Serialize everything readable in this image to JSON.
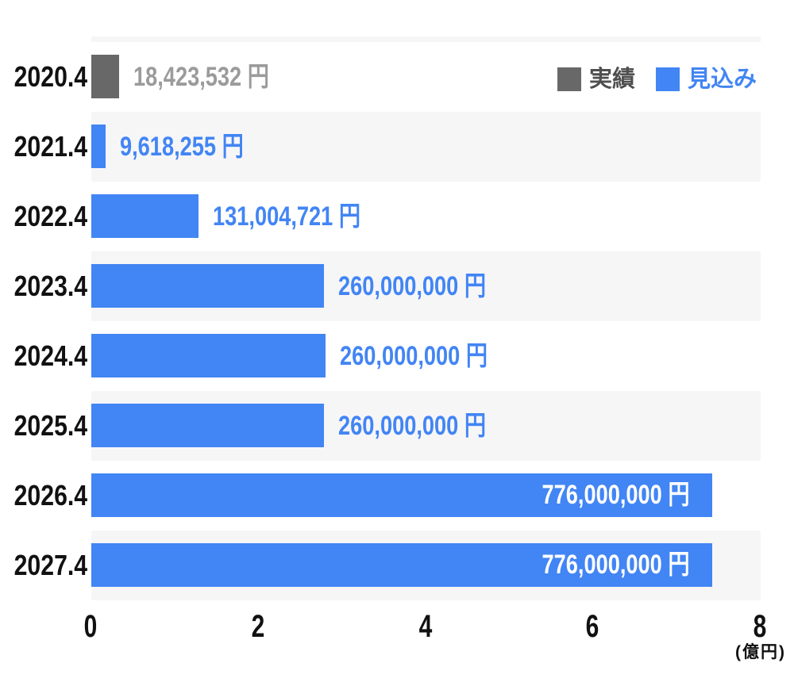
{
  "chart_data": {
    "type": "bar",
    "orientation": "horizontal",
    "grid": false,
    "legend_position": "top-right",
    "x_axis": {
      "tick_labels": [
        "0",
        "2",
        "4",
        "6",
        "8"
      ],
      "range": [
        0,
        8
      ],
      "unit_label": "(億円)"
    },
    "legend": [
      {
        "label": "実績",
        "swatch_color": "#686868",
        "text_color": "#4F4F4F"
      },
      {
        "label": "見込み",
        "swatch_color": "#4285F4",
        "text_color": "#4285F4"
      }
    ],
    "rows": [
      {
        "category": "2020.4",
        "value": 18423532,
        "value_label": "18,423,532 円",
        "series": "実績",
        "bar_color": "#686868",
        "label_color": "#9B9B9B",
        "label_inside": false,
        "bar_fraction": 0.0415,
        "striped": false
      },
      {
        "category": "2021.4",
        "value": 9618255,
        "value_label": "9,618,255 円",
        "series": "見込み",
        "bar_color": "#4285F4",
        "label_color": "#4285F4",
        "label_inside": false,
        "bar_fraction": 0.021,
        "striped": true
      },
      {
        "category": "2022.4",
        "value": 131004721,
        "value_label": "131,004,721 円",
        "series": "見込み",
        "bar_color": "#4285F4",
        "label_color": "#4285F4",
        "label_inside": false,
        "bar_fraction": 0.16,
        "striped": false
      },
      {
        "category": "2023.4",
        "value": 260000000,
        "value_label": "260,000,000 円",
        "series": "見込み",
        "bar_color": "#4285F4",
        "label_color": "#4285F4",
        "label_inside": false,
        "bar_fraction": 0.348,
        "striped": true
      },
      {
        "category": "2024.4",
        "value": 260000000,
        "value_label": "260,000,000 円",
        "series": "見込み",
        "bar_color": "#4285F4",
        "label_color": "#4285F4",
        "label_inside": false,
        "bar_fraction": 0.35,
        "striped": false
      },
      {
        "category": "2025.4",
        "value": 260000000,
        "value_label": "260,000,000 円",
        "series": "見込み",
        "bar_color": "#4285F4",
        "label_color": "#4285F4",
        "label_inside": false,
        "bar_fraction": 0.348,
        "striped": true
      },
      {
        "category": "2026.4",
        "value": 776000000,
        "value_label": "776,000,000 円",
        "series": "見込み",
        "bar_color": "#4285F4",
        "label_color": "#FFFFFF",
        "label_inside": true,
        "bar_fraction": 0.928,
        "striped": false
      },
      {
        "category": "2027.4",
        "value": 776000000,
        "value_label": "776,000,000 円",
        "series": "見込み",
        "bar_color": "#4285F4",
        "label_color": "#FFFFFF",
        "label_inside": true,
        "bar_fraction": 0.928,
        "striped": true
      }
    ]
  },
  "colors": {
    "accent_blue": "#4285F4",
    "bar_gray": "#686868",
    "stripe_gray": "#F6F6F7",
    "axis_text": "#111111",
    "actual_value_text": "#9B9B9B",
    "legend_actual_text": "#4F4F4F"
  }
}
